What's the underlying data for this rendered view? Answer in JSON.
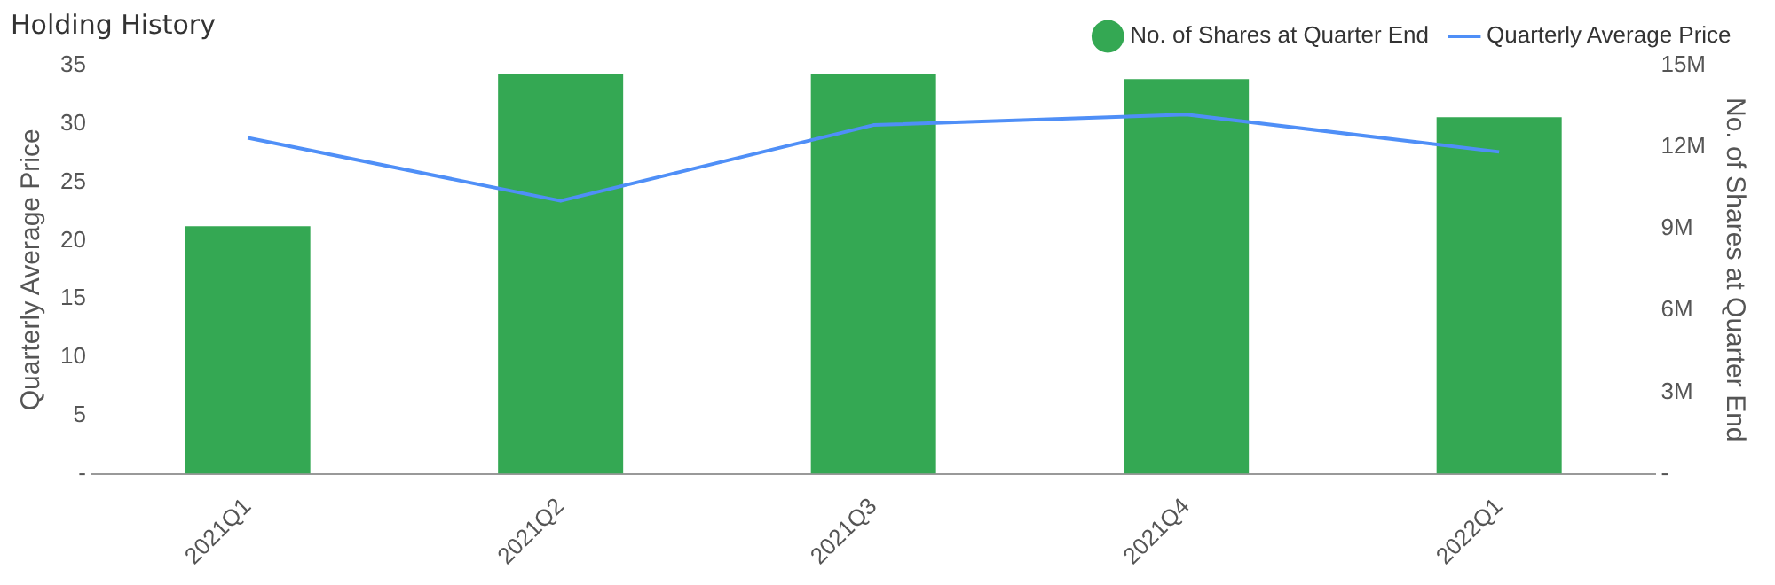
{
  "chart_data": {
    "type": "bar",
    "title": "Holding History",
    "categories": [
      "2021Q1",
      "2021Q2",
      "2021Q3",
      "2021Q4",
      "2022Q1"
    ],
    "series": [
      {
        "name": "No. of Shares at Quarter End",
        "axis": "y2",
        "color": "#34a853",
        "values": [
          9100000,
          14700000,
          14700000,
          14500000,
          13100000
        ]
      },
      {
        "name": "Quarterly Average Price",
        "type": "line",
        "color": "#4f8ff7",
        "values": [
          28.8,
          23.4,
          29.9,
          30.8,
          27.6
        ]
      }
    ],
    "ylabel": "Quarterly Average Price",
    "y2label": "No. of Shares at Quarter End",
    "ylim": [
      0,
      35
    ],
    "yticks": [
      {
        "value": 0,
        "label": "-"
      },
      5,
      10,
      15,
      20,
      25,
      30,
      35
    ],
    "y2lim": [
      0,
      15000000
    ],
    "y2ticks": [
      {
        "value": 0,
        "label": "-"
      },
      {
        "value": 3000000,
        "label": "3M"
      },
      {
        "value": 6000000,
        "label": "6M"
      },
      {
        "value": 9000000,
        "label": "9M"
      },
      {
        "value": 12000000,
        "label": "12M"
      },
      {
        "value": 15000000,
        "label": "15M"
      }
    ],
    "legend": "top right",
    "marker": "none",
    "line_style": "solid"
  }
}
